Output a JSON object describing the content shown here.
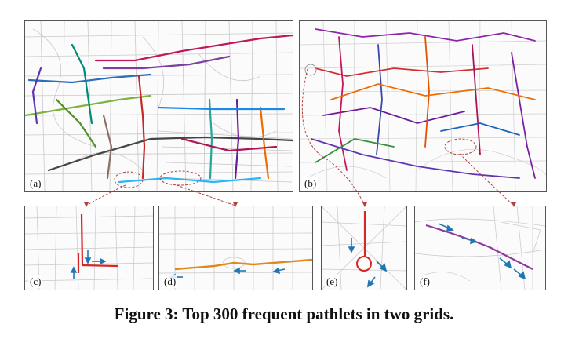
{
  "panels": {
    "a": {
      "label": "(a)"
    },
    "b": {
      "label": "(b)"
    },
    "c": {
      "label": "(c)"
    },
    "d": {
      "label": "(d)"
    },
    "e": {
      "label": "(e)"
    },
    "f": {
      "label": "(f)"
    }
  },
  "caption": "Figure 3: Top 300 frequent pathlets in two grids.",
  "colors": {
    "highlight_red": "#d62728",
    "highlight_orange": "#e08a1c",
    "highlight_purple": "#8e3a9c",
    "arrow_blue": "#1f77b4",
    "connector": "#b0413e"
  }
}
